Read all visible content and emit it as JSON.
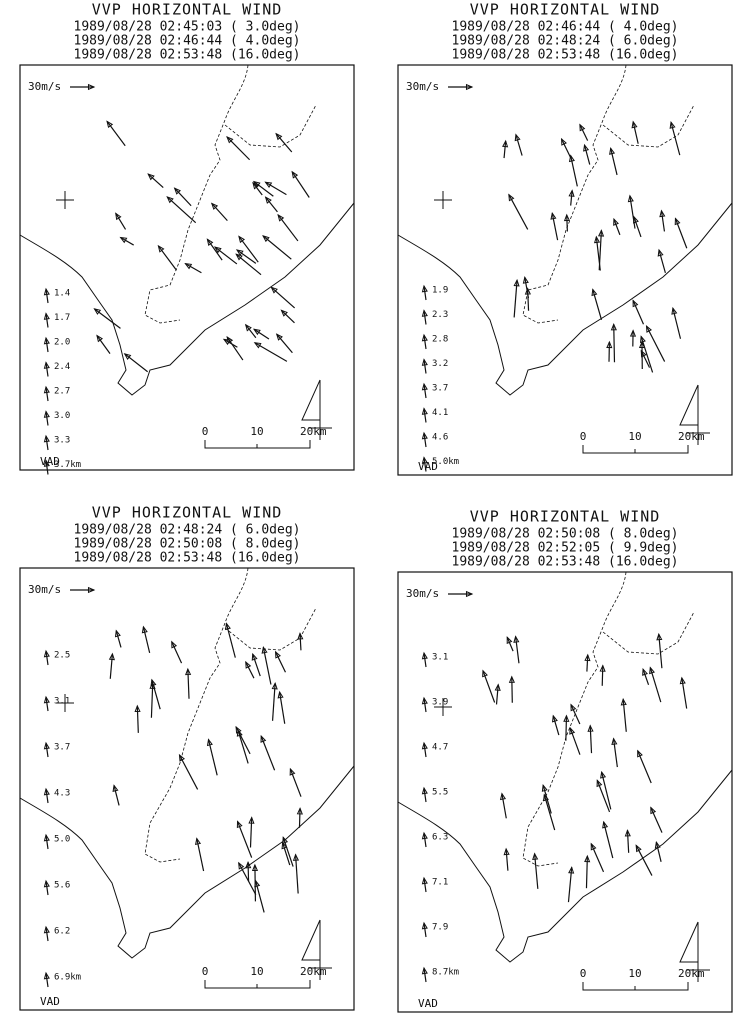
{
  "panels": [
    {
      "title": "VVP HORIZONTAL WIND",
      "scans": [
        "1989/08/28 02:45:03 ( 3.0deg)",
        "1989/08/28 02:46:44 ( 4.0deg)",
        "1989/08/28 02:53:48 (16.0deg)"
      ],
      "reference": "30m/s",
      "vad_heights": [
        "1.4",
        "1.7",
        "2.0",
        "2.4",
        "2.7",
        "3.0",
        "3.3",
        "3.7km"
      ],
      "vad_label": "VAD",
      "scale_labels": [
        "0",
        "10",
        "20km"
      ]
    },
    {
      "title": "VVP HORIZONTAL WIND",
      "scans": [
        "1989/08/28 02:46:44 ( 4.0deg)",
        "1989/08/28 02:48:24 ( 6.0deg)",
        "1989/08/28 02:53:48 (16.0deg)"
      ],
      "reference": "30m/s",
      "vad_heights": [
        "1.9",
        "2.3",
        "2.8",
        "3.2",
        "3.7",
        "4.1",
        "4.6",
        "5.0km"
      ],
      "vad_label": "VAD",
      "scale_labels": [
        "0",
        "10",
        "20km"
      ]
    },
    {
      "title": "VVP HORIZONTAL WIND",
      "scans": [
        "1989/08/28 02:48:24 ( 6.0deg)",
        "1989/08/28 02:50:08 ( 8.0deg)",
        "1989/08/28 02:53:48 (16.0deg)"
      ],
      "reference": "30m/s",
      "vad_heights": [
        "2.5",
        "3.1",
        "3.7",
        "4.3",
        "5.0",
        "5.6",
        "6.2",
        "6.9km"
      ],
      "vad_label": "VAD",
      "scale_labels": [
        "0",
        "10",
        "20km"
      ]
    },
    {
      "title": "VVP HORIZONTAL WIND",
      "scans": [
        "1989/08/28 02:50:08 ( 8.0deg)",
        "1989/08/28 02:52:05 ( 9.9deg)",
        "1989/08/28 02:53:48 (16.0deg)"
      ],
      "reference": "30m/s",
      "vad_heights": [
        "3.1",
        "3.9",
        "4.7",
        "5.5",
        "6.3",
        "7.1",
        "7.9",
        "8.7km"
      ],
      "vad_label": "VAD",
      "scale_labels": [
        "0",
        "10",
        "20km"
      ]
    }
  ]
}
